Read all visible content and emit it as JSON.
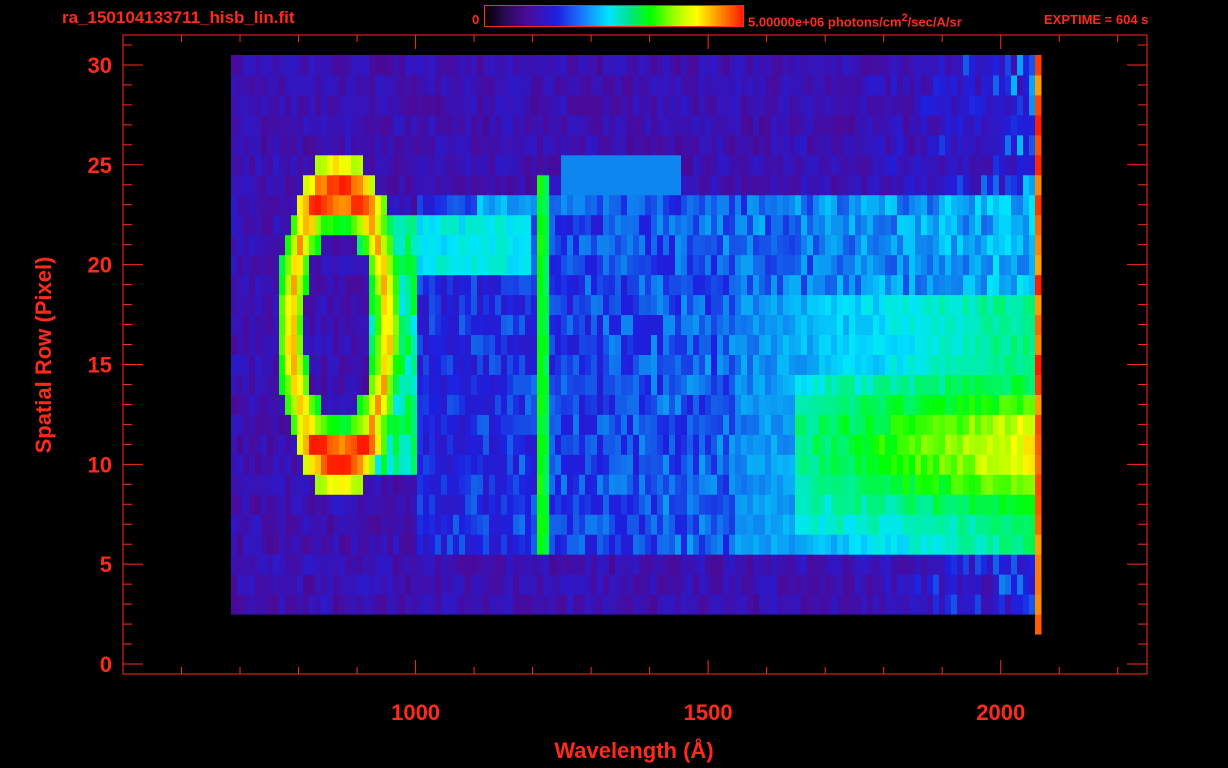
{
  "header": {
    "filename": "ra_150104133711_hisb_lin.fit",
    "colorbar_min": "0",
    "colorbar_max_html": "5.00000e+06 photons/cm<sup>2</sup>/sec/A/sr",
    "exptime": "EXPTIME = 604 s"
  },
  "chart_data": {
    "type": "heatmap",
    "title": "ra_150104133711_hisb_lin.fit",
    "xlabel": "Wavelength (Å)",
    "ylabel": "Spatial Row (Pixel)",
    "xlim": [
      500,
      2250
    ],
    "ylim": [
      -0.5,
      31.5
    ],
    "x_ticks": [
      1000,
      1500,
      2000
    ],
    "y_ticks": [
      0,
      5,
      10,
      15,
      20,
      25,
      30
    ],
    "colorbar": {
      "min": 0,
      "max": 5000000,
      "unit": "photons/cm^2/sec/A/sr"
    },
    "exptime_s": 604,
    "axis_color": "#ff2a1a",
    "colormap": [
      "#000000",
      "#4a0a9a",
      "#1d20e0",
      "#00e5ff",
      "#00ff00",
      "#ffff00",
      "#ff1a00"
    ],
    "features": [
      {
        "name": "ring",
        "x_center": 870,
        "y_center": 17,
        "x_radius": 85,
        "y_radius": 7
      },
      {
        "name": "lyman-alpha-line",
        "x": 1216,
        "y_range": [
          6,
          24
        ]
      },
      {
        "name": "band",
        "x_range": [
          1000,
          2060
        ],
        "y_range": [
          6,
          23
        ]
      },
      {
        "name": "bright-continuum",
        "x_range": [
          1650,
          2060
        ],
        "y_range": [
          7,
          14
        ]
      }
    ]
  }
}
